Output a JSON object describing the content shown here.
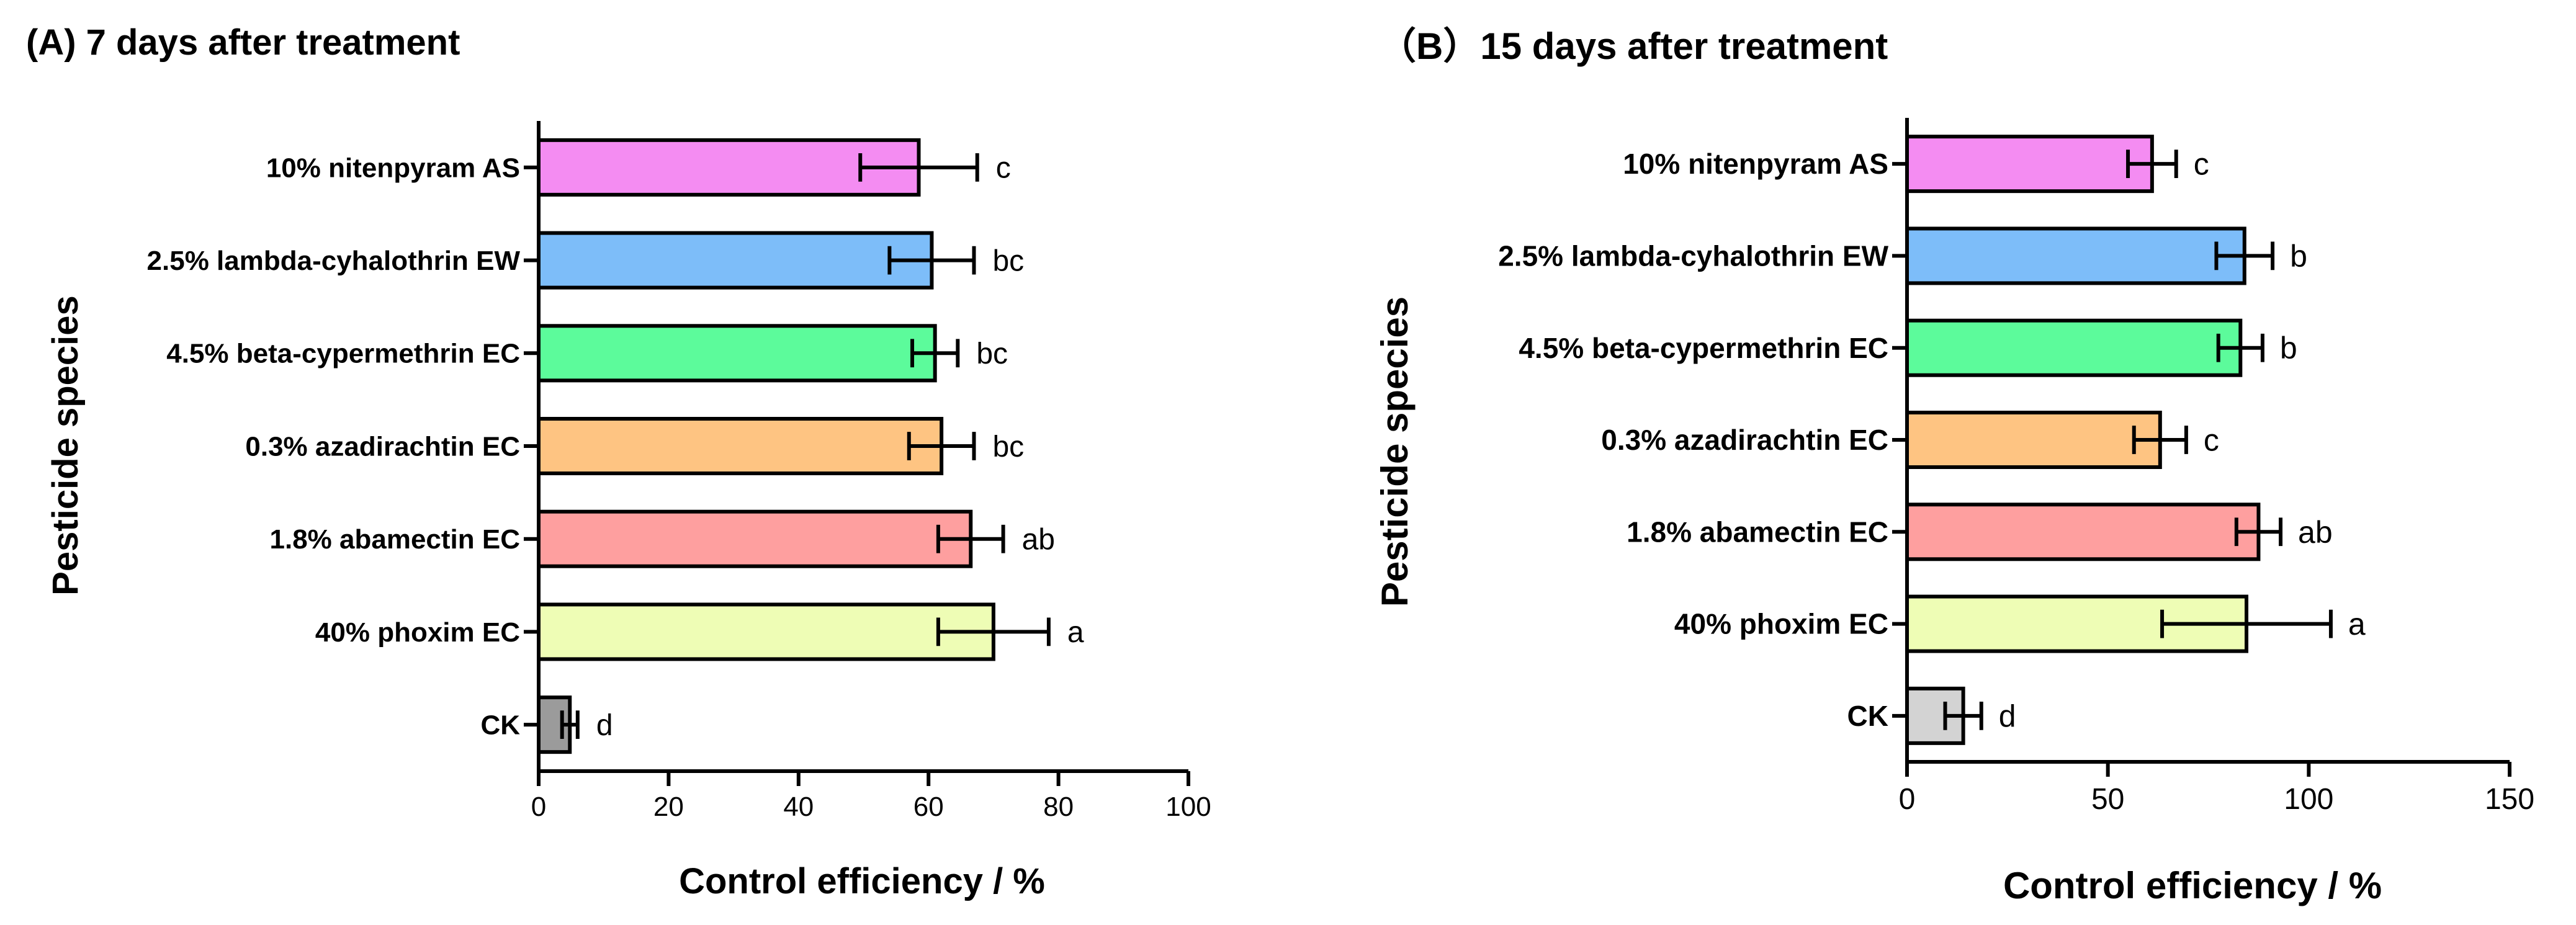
{
  "chart_data": [
    {
      "type": "bar",
      "orientation": "horizontal",
      "title": "(A) 7 days after treatment",
      "xlabel": "Control efficiency / %",
      "ylabel": "Pesticide species",
      "xlim": [
        0,
        100
      ],
      "xticks": [
        0,
        20,
        40,
        60,
        80,
        100
      ],
      "grid": false,
      "categories": [
        "10% nitenpyram AS",
        "2.5% lambda-cyhalothrin EW",
        "4.5% beta-cypermethrin EC",
        "0.3% azadirachtin EC",
        "1.8% abamectin EC",
        "40% phoxim EC",
        "CK"
      ],
      "values": [
        58.5,
        60.5,
        61,
        62,
        66.5,
        70,
        4.8
      ],
      "errors": [
        9,
        6.5,
        3.5,
        5,
        5,
        8.5,
        1.2
      ],
      "letters": [
        "c",
        "bc",
        "bc",
        "bc",
        "ab",
        "a",
        "d"
      ],
      "colors": [
        "#F48CF2",
        "#7DBDF9",
        "#5CFB9B",
        "#FEC482",
        "#FE9F9F",
        "#EEFDB5",
        "#9B9B9B"
      ]
    },
    {
      "type": "bar",
      "orientation": "horizontal",
      "title": "（B）15 days after treatment",
      "xlabel": "Control efficiency / %",
      "ylabel": "Pesticide species",
      "xlim": [
        0,
        150
      ],
      "xticks": [
        0,
        50,
        100,
        150
      ],
      "grid": false,
      "categories": [
        "10% nitenpyram AS",
        "2.5% lambda-cyhalothrin EW",
        "4.5% beta-cypermethrin EC",
        "0.3% azadirachtin EC",
        "1.8% abamectin EC",
        "40% phoxim EC",
        "CK"
      ],
      "values": [
        61,
        84,
        83,
        63,
        87.5,
        84.5,
        14
      ],
      "errors": [
        6,
        7,
        5.5,
        6.5,
        5.5,
        21,
        4.5
      ],
      "letters": [
        "c",
        "b",
        "b",
        "c",
        "ab",
        "a",
        "d"
      ],
      "colors": [
        "#F48CF2",
        "#7DBDF9",
        "#5CFB9B",
        "#FEC482",
        "#FE9F9F",
        "#EEFDB5",
        "#D3D3D3"
      ]
    }
  ]
}
